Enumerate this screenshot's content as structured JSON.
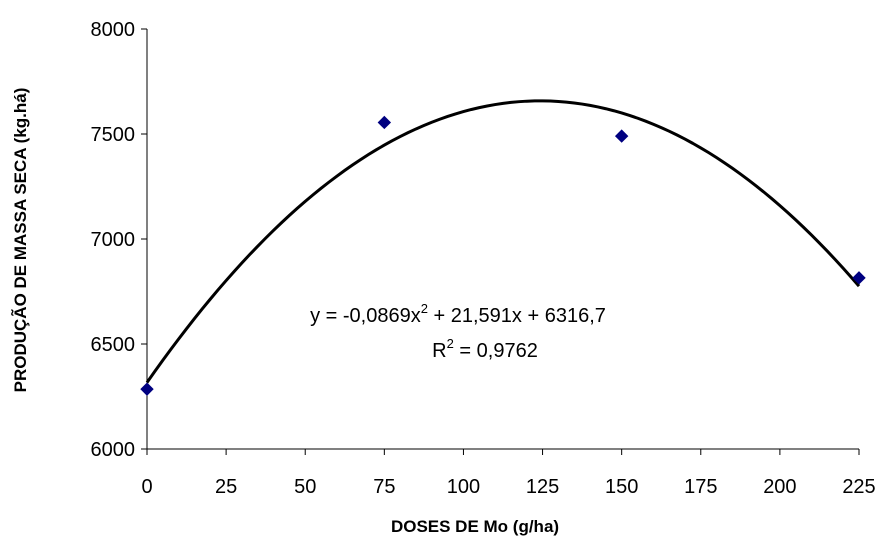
{
  "chart_data": {
    "type": "scatter",
    "title": "",
    "xlabel": "DOSES DE Mo (g/ha)",
    "ylabel": "PRODUÇÃO DE MASSA SECA (kg.há)",
    "xlim": [
      0,
      225
    ],
    "ylim": [
      6000,
      8000
    ],
    "x_ticks": [
      0,
      25,
      50,
      75,
      100,
      125,
      150,
      175,
      200,
      225
    ],
    "y_ticks": [
      6000,
      6500,
      7000,
      7500,
      8000
    ],
    "grid": false,
    "legend": "none",
    "series": [
      {
        "x": [
          0,
          75,
          150,
          225
        ],
        "y": [
          6285,
          7555,
          7490,
          6815
        ],
        "marker": "diamond",
        "color": "#000080"
      }
    ],
    "trendline": {
      "type": "polynomial",
      "order": 2,
      "coefficients": {
        "a": -0.0869,
        "b": 21.591,
        "c": 6316.7
      },
      "color": "#000000",
      "equation_parts": {
        "prefix": "y = -0,0869x",
        "exponent": "2",
        "suffix": " + 21,591x + 6316,7"
      },
      "r2_parts": {
        "prefix": "R",
        "exponent": "2",
        "suffix": " = 0,9762"
      }
    }
  }
}
